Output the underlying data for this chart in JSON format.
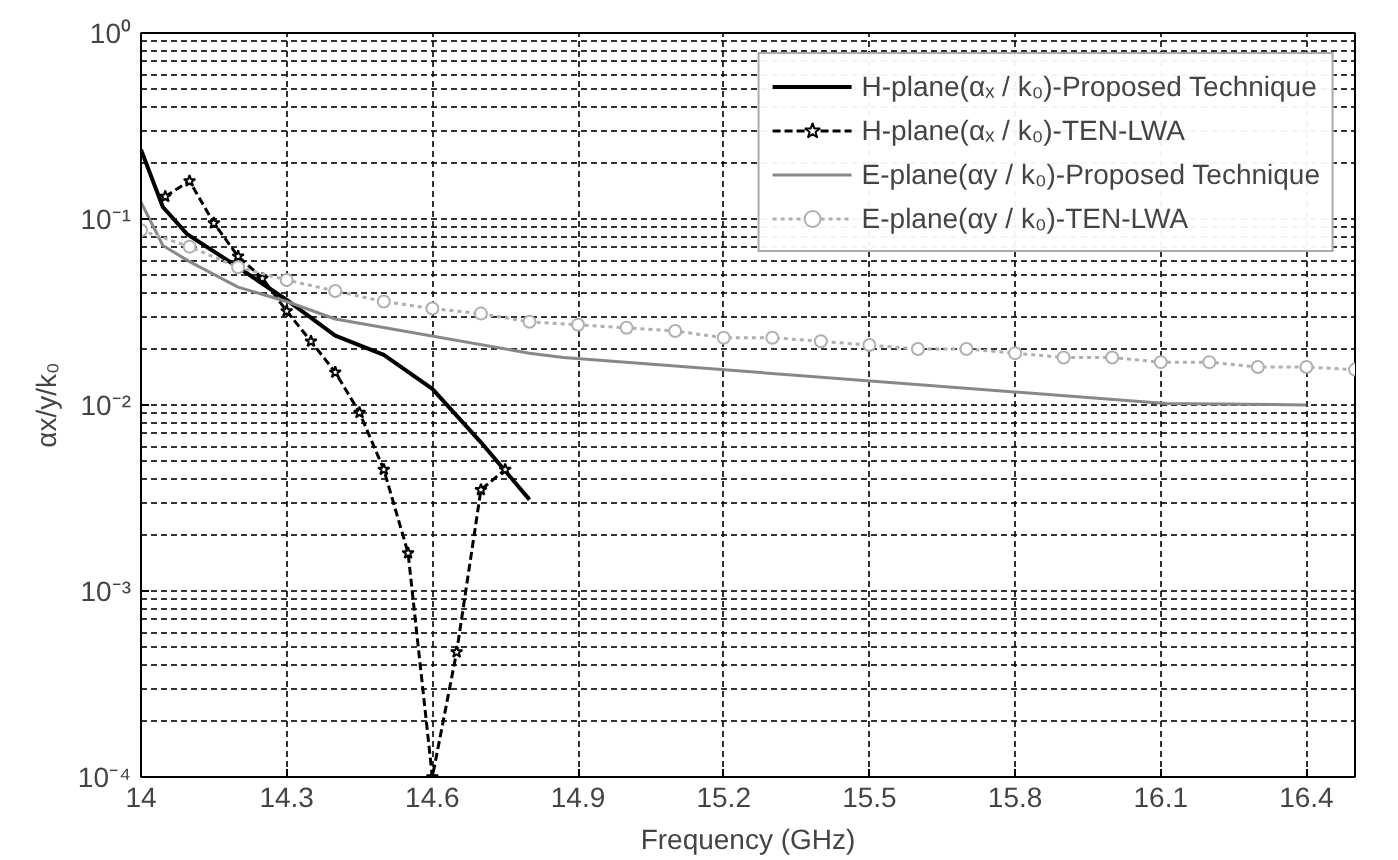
{
  "chart_data": {
    "type": "line",
    "xlabel": "Frequency (GHz)",
    "ylabel": "αx/y/k₀",
    "log": "y",
    "xlim": [
      14,
      16.5
    ],
    "xticks": [
      14,
      14.3,
      14.6,
      14.9,
      15.2,
      15.5,
      15.8,
      16.1,
      16.4
    ],
    "ylim": [
      0.0001,
      1
    ],
    "yticks": [
      {
        "value": 0.0001,
        "label": "10⁻⁴"
      },
      {
        "value": 0.001,
        "label": "10⁻³"
      },
      {
        "value": 0.01,
        "label": "10⁻²"
      },
      {
        "value": 0.1,
        "label": "10⁻¹"
      },
      {
        "value": 1,
        "label": "10⁰"
      }
    ],
    "grid": true,
    "legend": "top right",
    "series": [
      {
        "name": "H-plane(αₓ / k₀)-Proposed Technique",
        "color": "#000000",
        "line_style": "solid",
        "marker": "none",
        "x": [
          14.0,
          14.045,
          14.095,
          14.2,
          14.3,
          14.4,
          14.5,
          14.6,
          14.7,
          14.8
        ],
        "values": [
          0.236,
          0.116,
          0.083,
          0.055,
          0.0367,
          0.0236,
          0.0186,
          0.0122,
          0.0063,
          0.0031
        ]
      },
      {
        "name": "H-plane(αₓ / k₀)-TEN-LWA",
        "color": "#000000",
        "line_style": "dashed",
        "marker": "star",
        "x": [
          14.05,
          14.1,
          14.15,
          14.2,
          14.25,
          14.3,
          14.35,
          14.4,
          14.45,
          14.5,
          14.55,
          14.6,
          14.65,
          14.7,
          14.75
        ],
        "values": [
          0.132,
          0.16,
          0.095,
          0.063,
          0.048,
          0.032,
          0.022,
          0.015,
          0.0091,
          0.0045,
          0.0016,
          0.0001,
          0.00047,
          0.0035,
          0.0045
        ]
      },
      {
        "name": "E-plane(αy / k₀)-Proposed Technique",
        "color": "#888888",
        "line_style": "solid",
        "marker": "none",
        "x": [
          14.0,
          14.045,
          14.1,
          14.2,
          14.3,
          14.4,
          14.8,
          14.87,
          16.11,
          16.4
        ],
        "values": [
          0.123,
          0.072,
          0.059,
          0.043,
          0.036,
          0.029,
          0.019,
          0.018,
          0.0102,
          0.01
        ]
      },
      {
        "name": "E-plane(αy / k₀)-TEN-LWA",
        "color": "#b0b0b0",
        "line_style": "dotted",
        "marker": "circle",
        "x": [
          14.0,
          14.1,
          14.2,
          14.3,
          14.4,
          14.5,
          14.6,
          14.7,
          14.8,
          14.9,
          15.0,
          15.1,
          15.2,
          15.3,
          15.4,
          15.5,
          15.6,
          15.7,
          15.8,
          15.9,
          16.0,
          16.1,
          16.2,
          16.3,
          16.4,
          16.5
        ],
        "values": [
          0.087,
          0.071,
          0.055,
          0.047,
          0.041,
          0.036,
          0.033,
          0.031,
          0.028,
          0.027,
          0.026,
          0.025,
          0.023,
          0.023,
          0.022,
          0.021,
          0.02,
          0.02,
          0.019,
          0.018,
          0.018,
          0.017,
          0.017,
          0.016,
          0.016,
          0.0155
        ]
      }
    ]
  }
}
